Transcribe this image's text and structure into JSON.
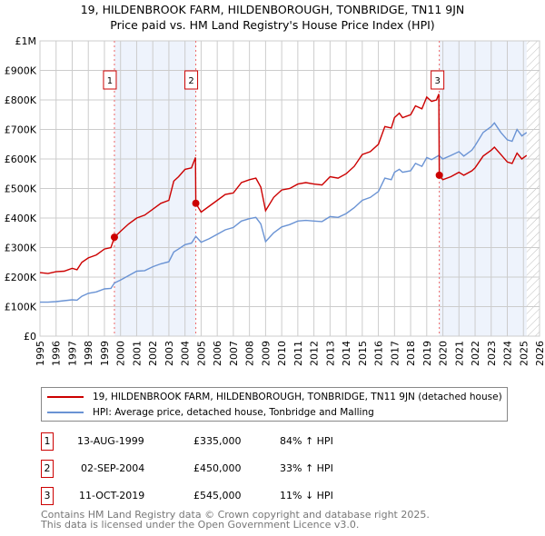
{
  "title_line1": "19, HILDENBROOK FARM, HILDENBOROUGH, TONBRIDGE, TN11 9JN",
  "title_line2": "Price paid vs. HM Land Registry's House Price Index (HPI)",
  "colors": {
    "property": "#cc0000",
    "hpi": "#6a93d4",
    "shade": "#eef3fc",
    "grid": "#cccccc"
  },
  "chart_data": {
    "type": "line",
    "xlim": [
      1995,
      2026
    ],
    "ylim": [
      0,
      1000000
    ],
    "x_ticks": [
      "1995",
      "1996",
      "1997",
      "1998",
      "1999",
      "2000",
      "2001",
      "2002",
      "2003",
      "2004",
      "2005",
      "2006",
      "2007",
      "2008",
      "2009",
      "2010",
      "2011",
      "2012",
      "2013",
      "2014",
      "2015",
      "2016",
      "2017",
      "2018",
      "2019",
      "2020",
      "2021",
      "2022",
      "2023",
      "2024",
      "2025",
      "2026"
    ],
    "y_ticks": [
      {
        "v": 0,
        "label": "£0"
      },
      {
        "v": 100000,
        "label": "£100K"
      },
      {
        "v": 200000,
        "label": "£200K"
      },
      {
        "v": 300000,
        "label": "£300K"
      },
      {
        "v": 400000,
        "label": "£400K"
      },
      {
        "v": 500000,
        "label": "£500K"
      },
      {
        "v": 600000,
        "label": "£600K"
      },
      {
        "v": 700000,
        "label": "£700K"
      },
      {
        "v": 800000,
        "label": "£800K"
      },
      {
        "v": 900000,
        "label": "£900K"
      },
      {
        "v": 1000000,
        "label": "£1M"
      }
    ],
    "grid": true,
    "shaded_ranges": [
      [
        1999.62,
        2004.67
      ],
      [
        2019.78,
        2025.2
      ]
    ],
    "hatched_from": 2025.2,
    "series": [
      {
        "name": "19, HILDENBROOK FARM, HILDENBOROUGH, TONBRIDGE, TN11 9JN (detached house)",
        "color": "#cc0000",
        "points": [
          [
            1995,
            215000
          ],
          [
            1995.5,
            212000
          ],
          [
            1996,
            218000
          ],
          [
            1996.5,
            220000
          ],
          [
            1997,
            230000
          ],
          [
            1997.3,
            225000
          ],
          [
            1997.6,
            250000
          ],
          [
            1998,
            265000
          ],
          [
            1998.5,
            275000
          ],
          [
            1999,
            295000
          ],
          [
            1999.4,
            300000
          ],
          [
            1999.62,
            335000
          ],
          [
            2000,
            355000
          ],
          [
            2000.5,
            380000
          ],
          [
            2001,
            400000
          ],
          [
            2001.5,
            410000
          ],
          [
            2002,
            430000
          ],
          [
            2002.5,
            450000
          ],
          [
            2003,
            460000
          ],
          [
            2003.3,
            525000
          ],
          [
            2003.6,
            540000
          ],
          [
            2004,
            565000
          ],
          [
            2004.4,
            570000
          ],
          [
            2004.65,
            605000
          ],
          [
            2004.67,
            450000
          ],
          [
            2005,
            420000
          ],
          [
            2005.5,
            440000
          ],
          [
            2006,
            460000
          ],
          [
            2006.5,
            480000
          ],
          [
            2007,
            485000
          ],
          [
            2007.5,
            520000
          ],
          [
            2008,
            530000
          ],
          [
            2008.4,
            535000
          ],
          [
            2008.7,
            505000
          ],
          [
            2009,
            425000
          ],
          [
            2009.5,
            470000
          ],
          [
            2010,
            495000
          ],
          [
            2010.5,
            500000
          ],
          [
            2011,
            515000
          ],
          [
            2011.5,
            520000
          ],
          [
            2012,
            515000
          ],
          [
            2012.5,
            512000
          ],
          [
            2013,
            540000
          ],
          [
            2013.5,
            535000
          ],
          [
            2014,
            550000
          ],
          [
            2014.5,
            575000
          ],
          [
            2015,
            615000
          ],
          [
            2015.5,
            625000
          ],
          [
            2016,
            650000
          ],
          [
            2016.4,
            710000
          ],
          [
            2016.8,
            705000
          ],
          [
            2017,
            740000
          ],
          [
            2017.3,
            755000
          ],
          [
            2017.5,
            740000
          ],
          [
            2018,
            750000
          ],
          [
            2018.3,
            780000
          ],
          [
            2018.7,
            770000
          ],
          [
            2019,
            810000
          ],
          [
            2019.3,
            795000
          ],
          [
            2019.6,
            800000
          ],
          [
            2019.75,
            820000
          ],
          [
            2019.78,
            545000
          ],
          [
            2020,
            530000
          ],
          [
            2020.5,
            540000
          ],
          [
            2021,
            555000
          ],
          [
            2021.3,
            545000
          ],
          [
            2021.8,
            560000
          ],
          [
            2022,
            570000
          ],
          [
            2022.5,
            610000
          ],
          [
            2023,
            630000
          ],
          [
            2023.2,
            640000
          ],
          [
            2023.6,
            615000
          ],
          [
            2024,
            590000
          ],
          [
            2024.3,
            585000
          ],
          [
            2024.6,
            620000
          ],
          [
            2024.9,
            600000
          ],
          [
            2025.2,
            612000
          ]
        ]
      },
      {
        "name": "HPI: Average price, detached house, Tonbridge and Malling",
        "color": "#6a93d4",
        "points": [
          [
            1995,
            115000
          ],
          [
            1995.5,
            115000
          ],
          [
            1996,
            117000
          ],
          [
            1996.5,
            120000
          ],
          [
            1997,
            123000
          ],
          [
            1997.3,
            122000
          ],
          [
            1997.6,
            135000
          ],
          [
            1998,
            145000
          ],
          [
            1998.5,
            150000
          ],
          [
            1999,
            160000
          ],
          [
            1999.4,
            162000
          ],
          [
            1999.62,
            180000
          ],
          [
            2000,
            190000
          ],
          [
            2000.5,
            205000
          ],
          [
            2001,
            220000
          ],
          [
            2001.5,
            222000
          ],
          [
            2002,
            235000
          ],
          [
            2002.5,
            245000
          ],
          [
            2003,
            252000
          ],
          [
            2003.3,
            285000
          ],
          [
            2003.6,
            295000
          ],
          [
            2004,
            310000
          ],
          [
            2004.4,
            315000
          ],
          [
            2004.67,
            338000
          ],
          [
            2005,
            318000
          ],
          [
            2005.5,
            330000
          ],
          [
            2006,
            345000
          ],
          [
            2006.5,
            360000
          ],
          [
            2007,
            368000
          ],
          [
            2007.5,
            390000
          ],
          [
            2008,
            398000
          ],
          [
            2008.4,
            402000
          ],
          [
            2008.7,
            380000
          ],
          [
            2009,
            320000
          ],
          [
            2009.5,
            350000
          ],
          [
            2010,
            370000
          ],
          [
            2010.5,
            378000
          ],
          [
            2011,
            390000
          ],
          [
            2011.5,
            392000
          ],
          [
            2012,
            390000
          ],
          [
            2012.5,
            388000
          ],
          [
            2013,
            405000
          ],
          [
            2013.5,
            402000
          ],
          [
            2014,
            415000
          ],
          [
            2014.5,
            435000
          ],
          [
            2015,
            460000
          ],
          [
            2015.5,
            470000
          ],
          [
            2016,
            490000
          ],
          [
            2016.4,
            535000
          ],
          [
            2016.8,
            530000
          ],
          [
            2017,
            555000
          ],
          [
            2017.3,
            565000
          ],
          [
            2017.5,
            555000
          ],
          [
            2018,
            560000
          ],
          [
            2018.3,
            585000
          ],
          [
            2018.7,
            575000
          ],
          [
            2019,
            605000
          ],
          [
            2019.3,
            598000
          ],
          [
            2019.75,
            612000
          ],
          [
            2020,
            600000
          ],
          [
            2020.5,
            612000
          ],
          [
            2021,
            625000
          ],
          [
            2021.3,
            610000
          ],
          [
            2021.8,
            630000
          ],
          [
            2022,
            645000
          ],
          [
            2022.5,
            690000
          ],
          [
            2023,
            710000
          ],
          [
            2023.2,
            722000
          ],
          [
            2023.6,
            690000
          ],
          [
            2024,
            665000
          ],
          [
            2024.3,
            660000
          ],
          [
            2024.6,
            700000
          ],
          [
            2024.9,
            678000
          ],
          [
            2025.2,
            690000
          ]
        ]
      }
    ],
    "sales": [
      {
        "id": "1",
        "x": 1999.62,
        "price": 335000
      },
      {
        "id": "2",
        "x": 2004.67,
        "price": 450000
      },
      {
        "id": "3",
        "x": 2019.78,
        "price": 545000
      }
    ]
  },
  "legend": {
    "property": "19, HILDENBROOK FARM, HILDENBOROUGH, TONBRIDGE, TN11 9JN (detached house)",
    "hpi": "HPI: Average price, detached house, Tonbridge and Malling"
  },
  "transactions": [
    {
      "id": "1",
      "date": "13-AUG-1999",
      "price": "£335,000",
      "delta": "84% ↑ HPI"
    },
    {
      "id": "2",
      "date": "02-SEP-2004",
      "price": "£450,000",
      "delta": "33% ↑ HPI"
    },
    {
      "id": "3",
      "date": "11-OCT-2019",
      "price": "£545,000",
      "delta": "11% ↓ HPI"
    }
  ],
  "footer": {
    "line1": "Contains HM Land Registry data © Crown copyright and database right 2025.",
    "line2": "This data is licensed under the Open Government Licence v3.0."
  }
}
